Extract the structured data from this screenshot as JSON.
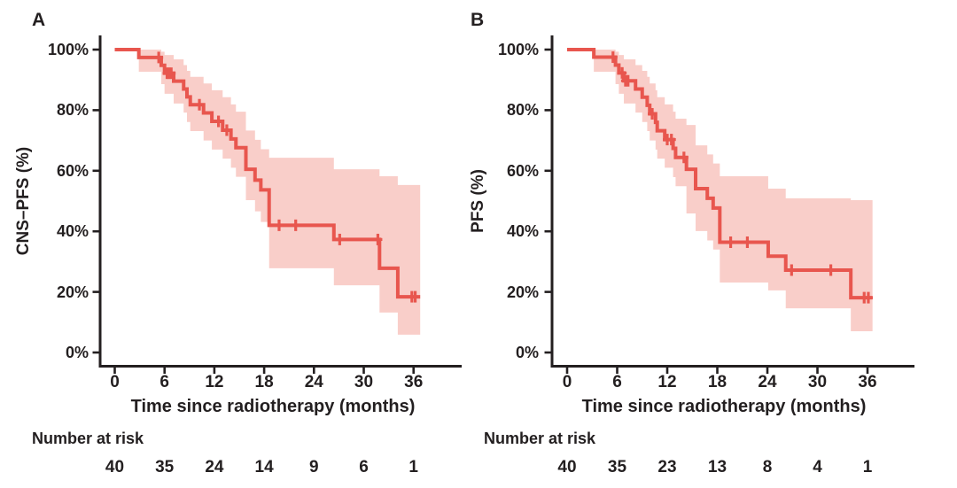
{
  "page": {
    "background": "#ffffff"
  },
  "colors": {
    "curve": "#e8564e",
    "band": "#f9cec9",
    "axis": "#231f20",
    "text": "#231f20"
  },
  "chart_data": [
    {
      "type": "line",
      "subtype": "kaplan-meier-step-curve-with-ci-band",
      "panel_label": "A",
      "xlabel": "Time since radiotherapy (months)",
      "ylabel": "CNS–PFS (%)",
      "xlim": [
        0,
        42
      ],
      "ylim": [
        0,
        100
      ],
      "x_ticks": [
        0,
        6,
        12,
        18,
        24,
        30,
        36
      ],
      "y_ticks": [
        0,
        20,
        40,
        60,
        80,
        100
      ],
      "y_tick_labels": [
        "0%",
        "20%",
        "40%",
        "60%",
        "80%",
        "100%"
      ],
      "grid": false,
      "legend": null,
      "km_curve": {
        "start": [
          0,
          100
        ],
        "steps": [
          [
            2.9,
            97.4
          ],
          [
            5.6,
            94.8
          ],
          [
            6.0,
            92.2
          ],
          [
            7.1,
            89.6
          ],
          [
            8.3,
            87.0
          ],
          [
            8.7,
            84.4
          ],
          [
            9.1,
            81.8
          ],
          [
            10.7,
            79.1
          ],
          [
            11.7,
            76.3
          ],
          [
            13.0,
            73.4
          ],
          [
            14.0,
            70.5
          ],
          [
            14.6,
            67.6
          ],
          [
            15.8,
            60.5
          ],
          [
            16.9,
            56.9
          ],
          [
            17.6,
            53.7
          ],
          [
            18.6,
            42.0
          ],
          [
            26.4,
            37.3
          ],
          [
            31.9,
            27.8
          ],
          [
            34.1,
            18.4
          ]
        ],
        "end_time": 36.8
      },
      "censor_marks": [
        [
          5.3,
          97.4
        ],
        [
          6.3,
          92.2
        ],
        [
          6.55,
          92.2
        ],
        [
          6.8,
          92.2
        ],
        [
          10.2,
          81.8
        ],
        [
          12.5,
          76.3
        ],
        [
          13.5,
          73.4
        ],
        [
          19.8,
          42.0
        ],
        [
          21.8,
          42.0
        ],
        [
          27.1,
          37.3
        ],
        [
          31.7,
          37.3
        ],
        [
          35.8,
          18.4
        ],
        [
          36.2,
          18.4
        ]
      ],
      "ci_band": {
        "segments": [
          [
            2.9,
            92.7,
            100
          ],
          [
            5.6,
            88.6,
            99.3
          ],
          [
            6.0,
            85.4,
            98.2
          ],
          [
            7.1,
            82.2,
            96.8
          ],
          [
            8.3,
            79.2,
            94.9
          ],
          [
            8.7,
            76.1,
            93.0
          ],
          [
            9.1,
            73.1,
            91.0
          ],
          [
            10.7,
            70.0,
            88.8
          ],
          [
            11.7,
            67.0,
            86.6
          ],
          [
            13.0,
            64.0,
            84.3
          ],
          [
            14.0,
            61.0,
            81.9
          ],
          [
            14.6,
            58.0,
            79.5
          ],
          [
            15.8,
            50.3,
            73.3
          ],
          [
            16.9,
            46.6,
            70.2
          ],
          [
            17.6,
            43.1,
            67.1
          ],
          [
            18.6,
            27.8,
            64.3
          ],
          [
            26.4,
            22.2,
            60.5
          ],
          [
            31.9,
            13.2,
            58.2
          ],
          [
            34.1,
            5.9,
            55.3
          ]
        ],
        "end_time": 36.8
      },
      "risk_table": {
        "label": "Number at risk",
        "times": [
          0,
          6,
          12,
          18,
          24,
          30,
          36
        ],
        "counts": [
          40,
          35,
          24,
          14,
          9,
          6,
          1
        ]
      }
    },
    {
      "type": "line",
      "subtype": "kaplan-meier-step-curve-with-ci-band",
      "panel_label": "B",
      "xlabel": "Time since radiotherapy (months)",
      "ylabel": "PFS (%)",
      "xlim": [
        0,
        42
      ],
      "ylim": [
        0,
        100
      ],
      "x_ticks": [
        0,
        6,
        12,
        18,
        24,
        30,
        36
      ],
      "y_ticks": [
        0,
        20,
        40,
        60,
        80,
        100
      ],
      "y_tick_labels": [
        "0%",
        "20%",
        "40%",
        "60%",
        "80%",
        "100%"
      ],
      "grid": false,
      "legend": null,
      "km_curve": {
        "start": [
          0,
          100
        ],
        "steps": [
          [
            3.2,
            97.5
          ],
          [
            5.8,
            94.9
          ],
          [
            6.2,
            92.3
          ],
          [
            6.8,
            89.7
          ],
          [
            8.2,
            87.0
          ],
          [
            9.0,
            84.3
          ],
          [
            9.6,
            81.6
          ],
          [
            9.9,
            78.8
          ],
          [
            10.6,
            76.0
          ],
          [
            10.8,
            73.2
          ],
          [
            11.7,
            70.3
          ],
          [
            12.7,
            67.4
          ],
          [
            13.0,
            64.4
          ],
          [
            14.3,
            60.5
          ],
          [
            15.4,
            54.1
          ],
          [
            16.8,
            50.9
          ],
          [
            17.5,
            47.7
          ],
          [
            18.3,
            36.4
          ],
          [
            24.1,
            31.8
          ],
          [
            26.2,
            27.2
          ],
          [
            34.0,
            18.1
          ]
        ],
        "end_time": 36.6
      },
      "censor_marks": [
        [
          5.5,
          97.5
        ],
        [
          6.6,
          92.3
        ],
        [
          7.0,
          89.7
        ],
        [
          7.3,
          89.7
        ],
        [
          10.2,
          78.8
        ],
        [
          12.0,
          70.3
        ],
        [
          12.5,
          70.3
        ],
        [
          14.0,
          64.4
        ],
        [
          19.6,
          36.4
        ],
        [
          21.6,
          36.4
        ],
        [
          26.9,
          27.2
        ],
        [
          31.6,
          27.2
        ],
        [
          35.6,
          18.1
        ],
        [
          36.1,
          18.1
        ]
      ],
      "ci_band": {
        "segments": [
          [
            3.2,
            92.7,
            100
          ],
          [
            5.8,
            88.6,
            99.3
          ],
          [
            6.2,
            85.4,
            98.2
          ],
          [
            6.8,
            82.2,
            96.8
          ],
          [
            8.2,
            79.2,
            94.9
          ],
          [
            9.0,
            76.1,
            93.0
          ],
          [
            9.6,
            73.1,
            91.0
          ],
          [
            9.9,
            70.0,
            88.8
          ],
          [
            10.6,
            67.0,
            86.6
          ],
          [
            10.8,
            64.0,
            84.3
          ],
          [
            11.7,
            61.0,
            81.9
          ],
          [
            12.7,
            57.9,
            79.5
          ],
          [
            13.0,
            54.9,
            77.2
          ],
          [
            14.3,
            45.9,
            75.1
          ],
          [
            15.4,
            40.1,
            68.4
          ],
          [
            16.8,
            37.0,
            65.4
          ],
          [
            17.5,
            34.0,
            62.4
          ],
          [
            18.3,
            23.1,
            58.2
          ],
          [
            24.1,
            20.5,
            54.1
          ],
          [
            26.2,
            14.6,
            50.9
          ],
          [
            34.0,
            7.0,
            50.3
          ]
        ],
        "end_time": 36.6
      },
      "risk_table": {
        "label": "Number at risk",
        "times": [
          0,
          6,
          12,
          18,
          24,
          30,
          36
        ],
        "counts": [
          40,
          35,
          23,
          13,
          8,
          4,
          1
        ]
      }
    }
  ]
}
